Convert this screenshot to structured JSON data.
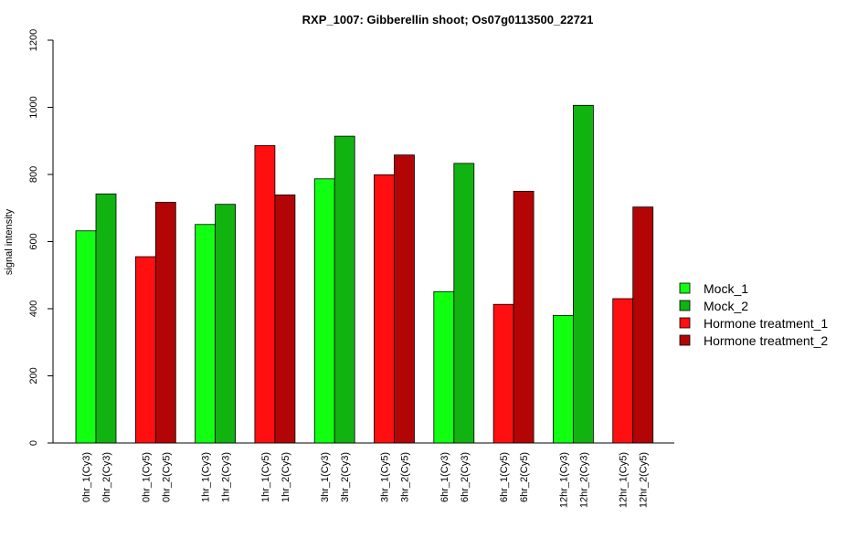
{
  "chart_data": {
    "type": "bar",
    "title": "RXP_1007: Gibberellin shoot; Os07g0113500_22721",
    "ylabel": "signal intensity",
    "xlabel": "",
    "ylim": [
      0,
      1200
    ],
    "yticks": [
      0,
      200,
      400,
      600,
      800,
      1000,
      1200
    ],
    "grid": false,
    "legend_position": "right",
    "series": [
      {
        "name": "Mock_1",
        "color": "#11ff11"
      },
      {
        "name": "Mock_2",
        "color": "#11b311"
      },
      {
        "name": "Hormone treatment_1",
        "color": "#ff0f0f"
      },
      {
        "name": "Hormone treatment_2",
        "color": "#b30505"
      }
    ],
    "bars": [
      {
        "label": "0hr_1(Cy3)",
        "value": 632,
        "series": 0
      },
      {
        "label": "0hr_2(Cy3)",
        "value": 742,
        "series": 1
      },
      {
        "label": "0hr_1(Cy5)",
        "value": 555,
        "series": 2
      },
      {
        "label": "0hr_2(Cy5)",
        "value": 717,
        "series": 3
      },
      {
        "label": "1hr_1(Cy3)",
        "value": 651,
        "series": 0
      },
      {
        "label": "1hr_2(Cy3)",
        "value": 711,
        "series": 1
      },
      {
        "label": "1hr_1(Cy5)",
        "value": 886,
        "series": 2
      },
      {
        "label": "1hr_2(Cy5)",
        "value": 739,
        "series": 3
      },
      {
        "label": "3hr_1(Cy3)",
        "value": 787,
        "series": 0
      },
      {
        "label": "3hr_2(Cy3)",
        "value": 914,
        "series": 1
      },
      {
        "label": "3hr_1(Cy5)",
        "value": 799,
        "series": 2
      },
      {
        "label": "3hr_2(Cy5)",
        "value": 858,
        "series": 3
      },
      {
        "label": "6hr_1(Cy3)",
        "value": 451,
        "series": 0
      },
      {
        "label": "6hr_2(Cy3)",
        "value": 833,
        "series": 1
      },
      {
        "label": "6hr_1(Cy5)",
        "value": 413,
        "series": 2
      },
      {
        "label": "6hr_2(Cy5)",
        "value": 750,
        "series": 3
      },
      {
        "label": "12hr_1(Cy3)",
        "value": 380,
        "series": 0
      },
      {
        "label": "12hr_2(Cy3)",
        "value": 1006,
        "series": 1
      },
      {
        "label": "12hr_1(Cy5)",
        "value": 430,
        "series": 2
      },
      {
        "label": "12hr_2(Cy5)",
        "value": 703,
        "series": 3
      }
    ]
  }
}
